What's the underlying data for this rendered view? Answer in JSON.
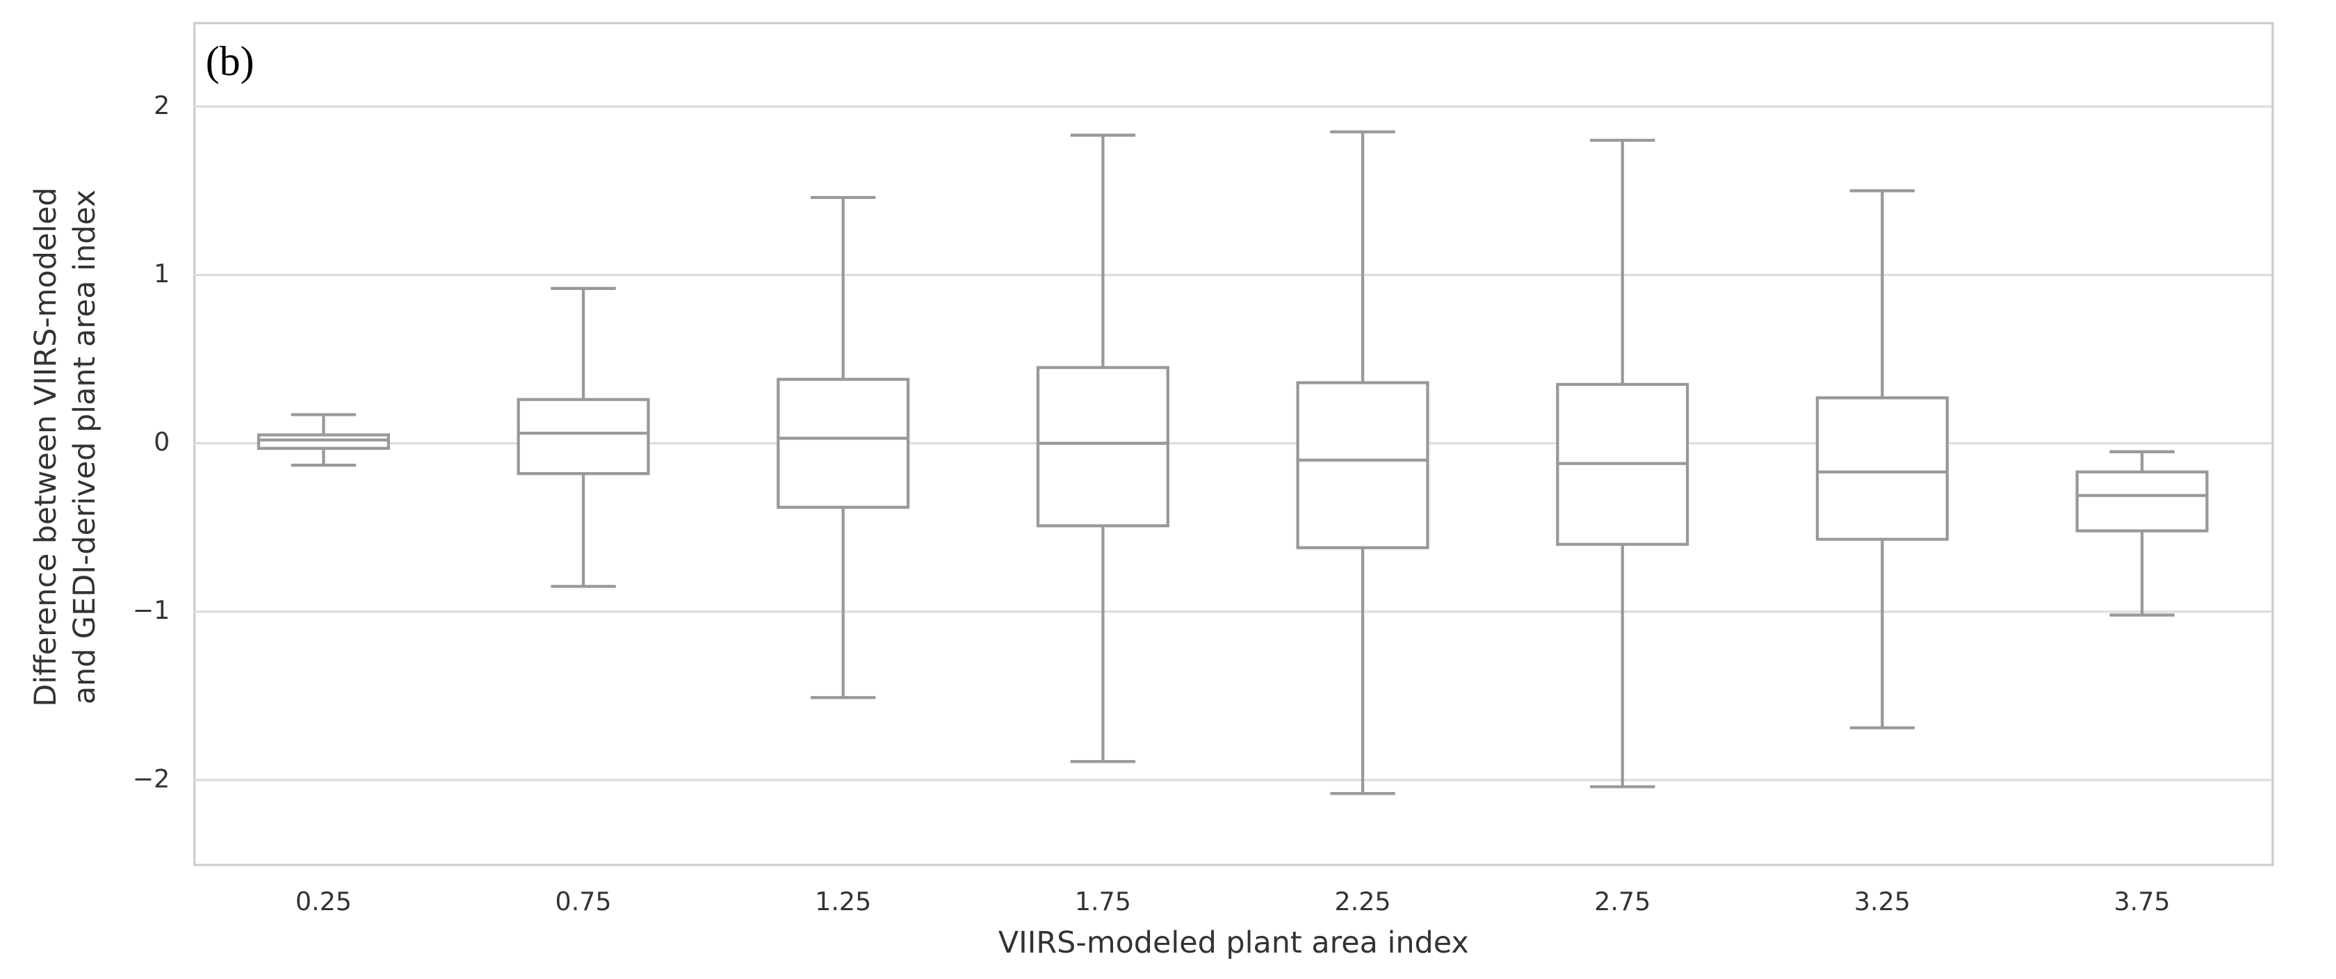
{
  "chart_data": {
    "type": "box",
    "annotation": "(b)",
    "xlabel": "VIIRS-modeled plant area index",
    "ylabel": [
      "Difference between VIIRS-modeled",
      "and GEDI-derived plant area index"
    ],
    "categories": [
      "0.25",
      "0.75",
      "1.25",
      "1.75",
      "2.25",
      "2.75",
      "3.25",
      "3.75"
    ],
    "low": [
      -0.13,
      -0.85,
      -1.51,
      -1.89,
      -2.08,
      -2.04,
      -1.69,
      -1.02
    ],
    "q1": [
      -0.03,
      -0.18,
      -0.38,
      -0.49,
      -0.62,
      -0.6,
      -0.57,
      -0.52
    ],
    "median": [
      0.02,
      0.06,
      0.03,
      0.0,
      -0.1,
      -0.12,
      -0.17,
      -0.31
    ],
    "q3": [
      0.05,
      0.26,
      0.38,
      0.45,
      0.36,
      0.35,
      0.27,
      -0.17
    ],
    "high": [
      0.17,
      0.92,
      1.46,
      1.83,
      1.85,
      1.8,
      1.5,
      -0.05
    ],
    "color": "#999999",
    "ylim": [
      -2.5,
      2.5
    ],
    "yticks": [
      {
        "value": -2,
        "label": "−2"
      },
      {
        "value": -1,
        "label": "−1"
      },
      0,
      1,
      2
    ],
    "grid": true
  }
}
